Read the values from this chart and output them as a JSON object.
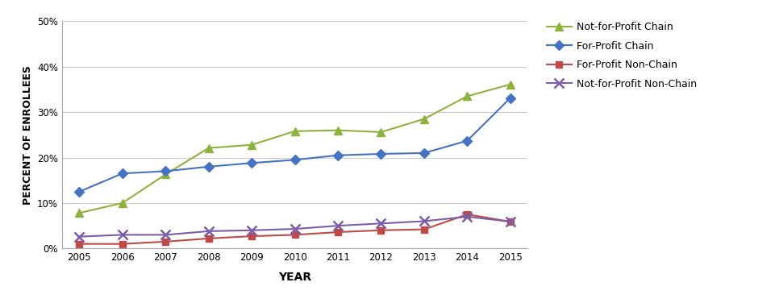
{
  "years": [
    2005,
    2006,
    2007,
    2008,
    2009,
    2010,
    2011,
    2012,
    2013,
    2014,
    2015
  ],
  "not_for_profit_chain": [
    0.078,
    0.1,
    0.163,
    0.221,
    0.228,
    0.258,
    0.26,
    0.256,
    0.285,
    0.335,
    0.361
  ],
  "for_profit_chain": [
    0.125,
    0.165,
    0.17,
    0.18,
    0.188,
    0.195,
    0.205,
    0.208,
    0.21,
    0.237,
    0.331
  ],
  "for_profit_nonchain": [
    0.01,
    0.01,
    0.015,
    0.022,
    0.027,
    0.03,
    0.036,
    0.04,
    0.042,
    0.075,
    0.059
  ],
  "not_for_profit_nonchain": [
    0.026,
    0.03,
    0.03,
    0.038,
    0.04,
    0.043,
    0.05,
    0.055,
    0.06,
    0.07,
    0.059
  ],
  "series_labels": [
    "Not-for-Profit Chain",
    "For-Profit Chain",
    "For-Profit Non-Chain",
    "Not-for-Profit Non-Chain"
  ],
  "series_colors": [
    "#8DB33A",
    "#4472C4",
    "#BE4B48",
    "#7B5EA7"
  ],
  "series_markers": [
    "^",
    "D",
    "s",
    "x"
  ],
  "ylabel": "PERCENT OF ENROLLEES",
  "xlabel": "YEAR",
  "ylim": [
    0.0,
    0.5
  ],
  "yticks": [
    0.0,
    0.1,
    0.2,
    0.3,
    0.4,
    0.5
  ],
  "background_color": "#FFFFFF",
  "grid_color": "#CCCCCC",
  "axis_label_fontsize": 9,
  "tick_fontsize": 8.5,
  "legend_fontsize": 9
}
